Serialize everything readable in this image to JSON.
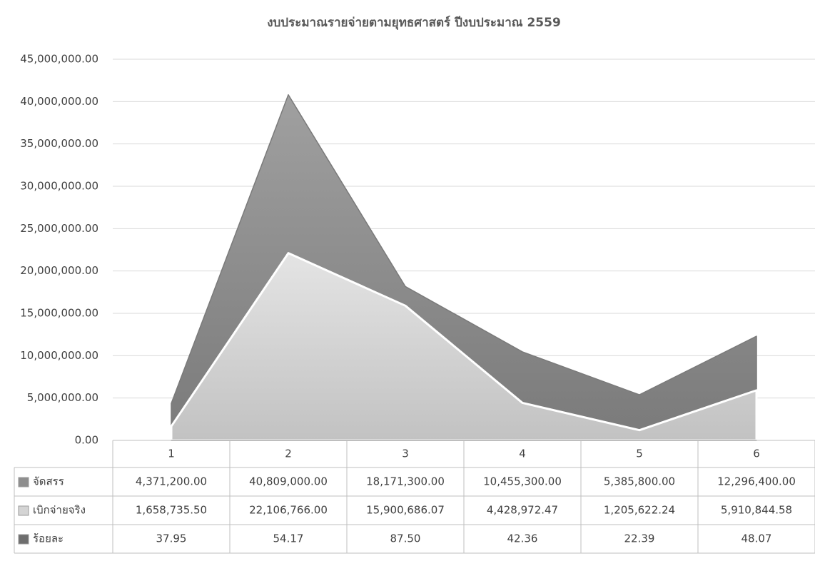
{
  "chart_data": {
    "type": "area",
    "title": "งบประมาณรายจ่ายตามยุทธศาสตร์ ปีงบประมาณ 2559",
    "categories": [
      "1",
      "2",
      "3",
      "4",
      "5",
      "6"
    ],
    "series": [
      {
        "name": "จัดสรร",
        "color": "#8e8e8e",
        "values": [
          4371200,
          40809000,
          18171300,
          10455300,
          5385800,
          12296400
        ],
        "value_labels": [
          "4,371,200.00",
          "40,809,000.00",
          "18,171,300.00",
          "10,455,300.00",
          "5,385,800.00",
          "12,296,400.00"
        ]
      },
      {
        "name": "เบิกจ่ายจริง",
        "color": "#d4d4d4",
        "values": [
          1658735.5,
          22106766.0,
          15900686.07,
          4428972.47,
          1205622.24,
          5910844.58
        ],
        "value_labels": [
          "1,658,735.50",
          "22,106,766.00",
          "15,900,686.07",
          "4,428,972.47",
          "1,205,622.24",
          "5,910,844.58"
        ]
      },
      {
        "name": "ร้อยละ",
        "color": "#6e6e6e",
        "values": [
          37.95,
          54.17,
          87.5,
          42.36,
          22.39,
          48.07
        ],
        "value_labels": [
          "37.95",
          "54.17",
          "87.50",
          "42.36",
          "22.39",
          "48.07"
        ]
      }
    ],
    "ylim": [
      0,
      45000000
    ],
    "yticks": [
      {
        "value": 0,
        "label": "0.00"
      },
      {
        "value": 5000000,
        "label": "5,000,000.00"
      },
      {
        "value": 10000000,
        "label": "10,000,000.00"
      },
      {
        "value": 15000000,
        "label": "15,000,000.00"
      },
      {
        "value": 20000000,
        "label": "20,000,000.00"
      },
      {
        "value": 25000000,
        "label": "25,000,000.00"
      },
      {
        "value": 30000000,
        "label": "30,000,000.00"
      },
      {
        "value": 35000000,
        "label": "35,000,000.00"
      },
      {
        "value": 40000000,
        "label": "40,000,000.00"
      },
      {
        "value": 45000000,
        "label": "45,000,000.00"
      }
    ],
    "grid": true
  }
}
